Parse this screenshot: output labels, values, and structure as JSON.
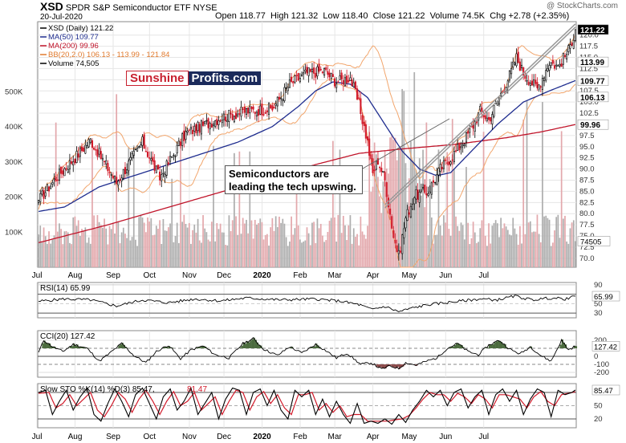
{
  "header": {
    "symbol": "XSD",
    "name": "SPDR S&P Semiconductor ETF",
    "exchange": "NYSE",
    "date": "20-Jul-2020",
    "open_label": "Open",
    "open": "118.77",
    "high_label": "High",
    "high": "121.32",
    "low_label": "Low",
    "low": "118.40",
    "close_label": "Close",
    "close": "121.22",
    "volume_label": "Volume",
    "volume": "74.5K",
    "chg_label": "Chg",
    "chg": "+2.78 (+2.35%)",
    "copyright": "@ StockCharts.com"
  },
  "logo": {
    "part1": "Sunshine",
    "part2": "Profits.com"
  },
  "annotation": {
    "line1": "Semiconductors are",
    "line2": "leading the tech upswing."
  },
  "colors": {
    "up": "#000000",
    "down": "#d11a2a",
    "ma50": "#1f2d8f",
    "ma200": "#c0142a",
    "bb": "#f2a66d",
    "volume": "#aeaeae",
    "volume_down": "#e3a8ac",
    "cci_fill": "#4b6b3e",
    "cci_fill_neg": "#8b4b4b",
    "sto_k": "#000000",
    "sto_d": "#d11a2a"
  },
  "chart_data": [
    {
      "type": "candlestick",
      "name": "price",
      "legend": [
        {
          "text": "XSD (Daily) 121.22",
          "color": "#000000"
        },
        {
          "text": "MA(50) 109.77",
          "color": "#1f2d8f"
        },
        {
          "text": "MA(200) 99.96",
          "color": "#c0142a"
        },
        {
          "text": "BB(20,2.0) 106.13 - 113.99 - 121.84",
          "color": "#e07a2e"
        },
        {
          "text": "Volume 74,505",
          "color": "#000000"
        }
      ],
      "y_ticks": [
        70.0,
        72.5,
        75.0,
        77.5,
        80.0,
        82.5,
        85.0,
        87.5,
        90.0,
        92.5,
        95.0,
        97.5,
        100.0,
        102.5,
        105.0,
        107.5,
        110.0,
        112.5,
        115.0,
        117.5,
        120.0
      ],
      "y_tick_labels": [
        "70.0",
        "72.5",
        "75.0",
        "77.5",
        "80.0",
        "82.5",
        "85.0",
        "87.5",
        "90.0",
        "92.5",
        "95.0",
        "97.5",
        "100.0",
        "102.5",
        "105.0",
        "107.5",
        "110.0",
        "112.5",
        "115.0",
        "117.5",
        "120.0"
      ],
      "ylim": [
        68,
        123
      ],
      "value_badges": [
        {
          "value": 121.22,
          "label": "121.22",
          "style": "dark"
        },
        {
          "value": 113.99,
          "label": "113.99",
          "style": "light"
        },
        {
          "value": 109.77,
          "label": "109.77",
          "style": "light"
        },
        {
          "value": 106.13,
          "label": "106.13",
          "style": "light"
        },
        {
          "value": 99.96,
          "label": "99.96",
          "style": "light"
        }
      ],
      "volume_ticks": [
        100000,
        200000,
        300000,
        400000,
        500000
      ],
      "volume_tick_labels": [
        "100K",
        "200K",
        "300K",
        "400K",
        "500K"
      ],
      "volume_badge": "74505",
      "x_months": [
        "Jul",
        "Aug",
        "Sep",
        "Oct",
        "Nov",
        "Dec",
        "2020",
        "Feb",
        "Mar",
        "Apr",
        "May",
        "Jun",
        "Jul"
      ],
      "close_anchors": [
        [
          0,
          83
        ],
        [
          10,
          88
        ],
        [
          22,
          93
        ],
        [
          30,
          96.5
        ],
        [
          45,
          87
        ],
        [
          60,
          96
        ],
        [
          70,
          88
        ],
        [
          85,
          98
        ],
        [
          105,
          101.5
        ],
        [
          120,
          103
        ],
        [
          135,
          103.5
        ],
        [
          145,
          109
        ],
        [
          155,
          111.5
        ],
        [
          165,
          112
        ],
        [
          172,
          109.5
        ],
        [
          180,
          110.5
        ],
        [
          185,
          104.5
        ],
        [
          190,
          96
        ],
        [
          193,
          89
        ],
        [
          196,
          92
        ],
        [
          200,
          87.5
        ],
        [
          205,
          75
        ],
        [
          208,
          70.5
        ],
        [
          212,
          79
        ],
        [
          217,
          84
        ],
        [
          225,
          85
        ],
        [
          232,
          90
        ],
        [
          238,
          92.5
        ],
        [
          245,
          96
        ],
        [
          250,
          99
        ],
        [
          255,
          103
        ],
        [
          260,
          101
        ],
        [
          266,
          106
        ],
        [
          272,
          111
        ],
        [
          276,
          115
        ],
        [
          280,
          111.5
        ],
        [
          288,
          108
        ],
        [
          295,
          114
        ],
        [
          300,
          113
        ],
        [
          306,
          116.5
        ],
        [
          310,
          121.2
        ]
      ],
      "ma50_anchors": [
        [
          0,
          80.5
        ],
        [
          15,
          81.5
        ],
        [
          35,
          86
        ],
        [
          55,
          88.5
        ],
        [
          75,
          91
        ],
        [
          95,
          93.5
        ],
        [
          115,
          96
        ],
        [
          135,
          99.5
        ],
        [
          150,
          104
        ],
        [
          160,
          107.5
        ],
        [
          170,
          109.5
        ],
        [
          180,
          109
        ],
        [
          190,
          106
        ],
        [
          200,
          100
        ],
        [
          210,
          94
        ],
        [
          220,
          90
        ],
        [
          230,
          88.5
        ],
        [
          238,
          89.2
        ],
        [
          245,
          92
        ],
        [
          255,
          96
        ],
        [
          265,
          100
        ],
        [
          280,
          105
        ],
        [
          295,
          107.5
        ],
        [
          310,
          109.8
        ]
      ],
      "ma200_anchors": [
        [
          0,
          73.5
        ],
        [
          40,
          77.5
        ],
        [
          80,
          82
        ],
        [
          120,
          86.5
        ],
        [
          160,
          91
        ],
        [
          185,
          93.5
        ],
        [
          210,
          94.5
        ],
        [
          240,
          95.5
        ],
        [
          270,
          97
        ],
        [
          290,
          98.3
        ],
        [
          310,
          99.96
        ]
      ]
    },
    {
      "type": "line",
      "name": "rsi",
      "label": "RSI(14) 65.99",
      "ylim": [
        20,
        95
      ],
      "y_ticks": [
        90,
        70,
        50,
        30
      ],
      "y_tick_labels": [
        "90",
        "70",
        "50",
        "30"
      ],
      "badge": "65.99",
      "values_anchors": [
        [
          0,
          55
        ],
        [
          15,
          60
        ],
        [
          30,
          58
        ],
        [
          45,
          45
        ],
        [
          60,
          58
        ],
        [
          75,
          52
        ],
        [
          90,
          60
        ],
        [
          105,
          56
        ],
        [
          120,
          62
        ],
        [
          140,
          58
        ],
        [
          160,
          60
        ],
        [
          175,
          55
        ],
        [
          185,
          48
        ],
        [
          192,
          38
        ],
        [
          200,
          44
        ],
        [
          208,
          33
        ],
        [
          215,
          40
        ],
        [
          225,
          48
        ],
        [
          235,
          52
        ],
        [
          245,
          56
        ],
        [
          255,
          60
        ],
        [
          265,
          58
        ],
        [
          275,
          66
        ],
        [
          285,
          58
        ],
        [
          295,
          62
        ],
        [
          305,
          60
        ],
        [
          310,
          65.99
        ]
      ]
    },
    {
      "type": "area",
      "name": "cci",
      "label": "CCI(20) 127.42",
      "ylim": [
        -260,
        320
      ],
      "y_ticks": [
        200,
        100,
        0,
        -100,
        -200
      ],
      "y_tick_labels": [
        "200",
        "100",
        "0",
        "-100",
        "-200"
      ],
      "badge": "127.42",
      "values_anchors": [
        [
          0,
          50
        ],
        [
          3,
          200
        ],
        [
          8,
          120
        ],
        [
          14,
          60
        ],
        [
          20,
          150
        ],
        [
          28,
          100
        ],
        [
          35,
          -60
        ],
        [
          40,
          20
        ],
        [
          48,
          160
        ],
        [
          55,
          10
        ],
        [
          62,
          -80
        ],
        [
          68,
          60
        ],
        [
          75,
          140
        ],
        [
          82,
          -30
        ],
        [
          88,
          80
        ],
        [
          95,
          130
        ],
        [
          102,
          20
        ],
        [
          110,
          -20
        ],
        [
          118,
          160
        ],
        [
          124,
          220
        ],
        [
          130,
          90
        ],
        [
          138,
          10
        ],
        [
          145,
          120
        ],
        [
          152,
          40
        ],
        [
          160,
          150
        ],
        [
          166,
          70
        ],
        [
          172,
          -20
        ],
        [
          178,
          40
        ],
        [
          186,
          -100
        ],
        [
          192,
          -80
        ],
        [
          198,
          -160
        ],
        [
          203,
          -120
        ],
        [
          208,
          -150
        ],
        [
          212,
          -80
        ],
        [
          218,
          -110
        ],
        [
          224,
          -60
        ],
        [
          230,
          -20
        ],
        [
          236,
          100
        ],
        [
          242,
          160
        ],
        [
          248,
          60
        ],
        [
          254,
          20
        ],
        [
          260,
          140
        ],
        [
          266,
          200
        ],
        [
          272,
          90
        ],
        [
          278,
          30
        ],
        [
          284,
          120
        ],
        [
          290,
          10
        ],
        [
          296,
          -60
        ],
        [
          302,
          200
        ],
        [
          306,
          80
        ],
        [
          310,
          127.42
        ]
      ]
    },
    {
      "type": "line",
      "name": "sto",
      "label_k": "Slow STO %K(14) %D(3) 85.47,",
      "label_d": "81.47",
      "ylim": [
        0,
        100
      ],
      "y_ticks": [
        80,
        50,
        20
      ],
      "y_tick_labels": [
        "80",
        "50",
        "20"
      ],
      "badge": "85.47",
      "k_anchors": [
        [
          0,
          80
        ],
        [
          4,
          85
        ],
        [
          8,
          30
        ],
        [
          12,
          60
        ],
        [
          16,
          85
        ],
        [
          20,
          40
        ],
        [
          24,
          70
        ],
        [
          28,
          90
        ],
        [
          32,
          30
        ],
        [
          36,
          15
        ],
        [
          40,
          55
        ],
        [
          44,
          88
        ],
        [
          48,
          60
        ],
        [
          52,
          25
        ],
        [
          56,
          75
        ],
        [
          60,
          90
        ],
        [
          64,
          55
        ],
        [
          68,
          20
        ],
        [
          72,
          70
        ],
        [
          76,
          88
        ],
        [
          80,
          40
        ],
        [
          84,
          60
        ],
        [
          88,
          90
        ],
        [
          92,
          30
        ],
        [
          96,
          55
        ],
        [
          100,
          80
        ],
        [
          104,
          20
        ],
        [
          108,
          65
        ],
        [
          112,
          90
        ],
        [
          116,
          85
        ],
        [
          120,
          30
        ],
        [
          124,
          80
        ],
        [
          128,
          88
        ],
        [
          132,
          50
        ],
        [
          136,
          85
        ],
        [
          140,
          40
        ],
        [
          144,
          20
        ],
        [
          148,
          85
        ],
        [
          152,
          70
        ],
        [
          156,
          85
        ],
        [
          160,
          30
        ],
        [
          164,
          65
        ],
        [
          168,
          25
        ],
        [
          172,
          60
        ],
        [
          176,
          30
        ],
        [
          180,
          10
        ],
        [
          184,
          55
        ],
        [
          188,
          10
        ],
        [
          192,
          15
        ],
        [
          196,
          10
        ],
        [
          200,
          20
        ],
        [
          204,
          8
        ],
        [
          208,
          30
        ],
        [
          212,
          12
        ],
        [
          216,
          40
        ],
        [
          220,
          60
        ],
        [
          224,
          85
        ],
        [
          228,
          70
        ],
        [
          232,
          85
        ],
        [
          236,
          50
        ],
        [
          240,
          80
        ],
        [
          244,
          88
        ],
        [
          248,
          45
        ],
        [
          252,
          70
        ],
        [
          256,
          85
        ],
        [
          260,
          30
        ],
        [
          264,
          75
        ],
        [
          268,
          88
        ],
        [
          272,
          60
        ],
        [
          276,
          85
        ],
        [
          280,
          30
        ],
        [
          284,
          65
        ],
        [
          288,
          88
        ],
        [
          292,
          80
        ],
        [
          296,
          25
        ],
        [
          300,
          85
        ],
        [
          304,
          75
        ],
        [
          308,
          80
        ],
        [
          310,
          85.47
        ]
      ],
      "d_anchors": [
        [
          0,
          78
        ],
        [
          6,
          80
        ],
        [
          10,
          45
        ],
        [
          14,
          55
        ],
        [
          18,
          75
        ],
        [
          22,
          50
        ],
        [
          26,
          65
        ],
        [
          30,
          80
        ],
        [
          34,
          40
        ],
        [
          38,
          25
        ],
        [
          42,
          50
        ],
        [
          46,
          80
        ],
        [
          50,
          65
        ],
        [
          54,
          35
        ],
        [
          58,
          65
        ],
        [
          62,
          85
        ],
        [
          66,
          60
        ],
        [
          70,
          30
        ],
        [
          74,
          60
        ],
        [
          78,
          82
        ],
        [
          82,
          50
        ],
        [
          86,
          60
        ],
        [
          90,
          80
        ],
        [
          94,
          40
        ],
        [
          98,
          55
        ],
        [
          102,
          70
        ],
        [
          106,
          30
        ],
        [
          110,
          60
        ],
        [
          114,
          85
        ],
        [
          118,
          80
        ],
        [
          122,
          40
        ],
        [
          126,
          70
        ],
        [
          130,
          82
        ],
        [
          134,
          55
        ],
        [
          138,
          75
        ],
        [
          142,
          45
        ],
        [
          146,
          30
        ],
        [
          150,
          75
        ],
        [
          154,
          75
        ],
        [
          158,
          80
        ],
        [
          162,
          40
        ],
        [
          166,
          55
        ],
        [
          170,
          35
        ],
        [
          174,
          50
        ],
        [
          178,
          25
        ],
        [
          182,
          30
        ],
        [
          186,
          30
        ],
        [
          190,
          15
        ],
        [
          194,
          15
        ],
        [
          198,
          15
        ],
        [
          202,
          15
        ],
        [
          206,
          18
        ],
        [
          210,
          20
        ],
        [
          214,
          28
        ],
        [
          218,
          45
        ],
        [
          222,
          65
        ],
        [
          226,
          80
        ],
        [
          230,
          75
        ],
        [
          234,
          75
        ],
        [
          238,
          60
        ],
        [
          242,
          78
        ],
        [
          246,
          70
        ],
        [
          250,
          55
        ],
        [
          254,
          75
        ],
        [
          258,
          65
        ],
        [
          262,
          45
        ],
        [
          266,
          75
        ],
        [
          270,
          75
        ],
        [
          274,
          70
        ],
        [
          278,
          65
        ],
        [
          282,
          45
        ],
        [
          286,
          70
        ],
        [
          290,
          82
        ],
        [
          294,
          60
        ],
        [
          298,
          50
        ],
        [
          302,
          75
        ],
        [
          306,
          78
        ],
        [
          310,
          81.47
        ]
      ]
    }
  ]
}
